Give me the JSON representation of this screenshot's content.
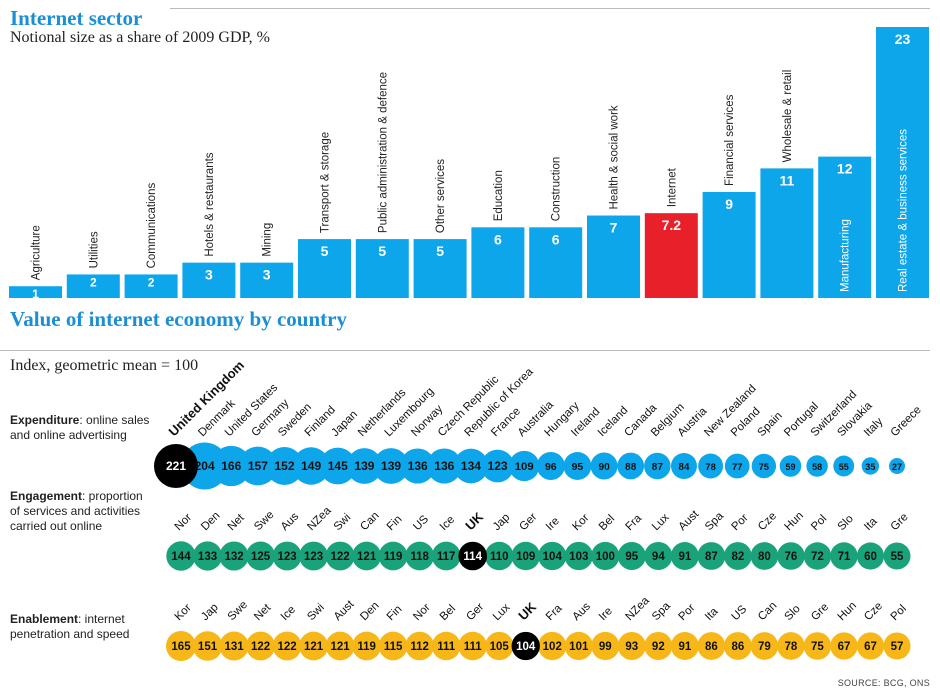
{
  "header": {
    "title": "Internet sector",
    "subtitle": "Notional size as a share of 2009 GDP, %"
  },
  "section2": {
    "title": "Value of internet economy by country",
    "subtitle": "Index, geometric mean = 100"
  },
  "source": "SOURCE: BCG, ONS",
  "colors": {
    "bar": "#0ea6ea",
    "highlight_bar": "#e8202a",
    "expenditure": "#0ea6ea",
    "engagement": "#1aa37a",
    "enablement": "#f7b718",
    "uk": "#000000"
  },
  "rows": {
    "expenditure": {
      "label_bold": "Expenditure",
      "label_rest": ": online sales and online adver­tising"
    },
    "engagement": {
      "label_bold": "Engagement",
      "label_rest": ": propor­tion of services and activities carried out online"
    },
    "enablement": {
      "label_bold": "Enablement",
      "label_rest": ": internet penetration and speed"
    }
  },
  "chart_data": [
    {
      "type": "bar",
      "title": "Internet sector",
      "subtitle": "Notional size as a share of 2009 GDP, %",
      "categories": [
        "Agriculture",
        "Utilities",
        "Communications",
        "Hotels & restaurants",
        "Mining",
        "Transport & storage",
        "Public administration & defence",
        "Other services",
        "Education",
        "Construction",
        "Health & social work",
        "Internet",
        "Financial services",
        "Wholesale & retail",
        "Manufacturing",
        "Real estate & business services"
      ],
      "values": [
        1,
        2,
        2,
        3,
        3,
        5,
        5,
        5,
        6,
        6,
        7,
        7.2,
        9,
        11,
        12,
        23
      ],
      "value_labels": [
        "1",
        "2",
        "2",
        "3",
        "3",
        "5",
        "5",
        "5",
        "6",
        "6",
        "7",
        "7.2",
        "9",
        "11",
        "12",
        "23"
      ],
      "highlight": "Internet",
      "ylim": [
        0,
        23
      ]
    },
    {
      "type": "scatter",
      "title": "Value of internet economy by country",
      "subtitle": "Index, geometric mean = 100",
      "series": [
        {
          "name": "Expenditure",
          "categories": [
            "United Kingdom",
            "Denmark",
            "United States",
            "Germany",
            "Sweden",
            "Finland",
            "Japan",
            "Netherlands",
            "Luxembourg",
            "Norway",
            "Czech Republic",
            "Republic of Korea",
            "France",
            "Australia",
            "Hungary",
            "Ireland",
            "Iceland",
            "Canada",
            "Belgium",
            "Austria",
            "New Zealand",
            "Poland",
            "Spain",
            "Portugal",
            "Switzerland",
            "Slovakia",
            "Italy",
            "Greece"
          ],
          "values": [
            221,
            204,
            166,
            157,
            152,
            149,
            145,
            139,
            139,
            136,
            136,
            134,
            123,
            109,
            96,
            95,
            90,
            88,
            87,
            84,
            78,
            77,
            75,
            59,
            58,
            55,
            35,
            27
          ],
          "highlight": "United Kingdom"
        },
        {
          "name": "Engagement",
          "categories": [
            "Nor",
            "Den",
            "Net",
            "Swe",
            "Aus",
            "NZea",
            "Swi",
            "Can",
            "Fin",
            "US",
            "Ice",
            "UK",
            "Jap",
            "Ger",
            "Ire",
            "Kor",
            "Bel",
            "Fra",
            "Lux",
            "Aust",
            "Spa",
            "Por",
            "Cze",
            "Hun",
            "Pol",
            "Slo",
            "Ita",
            "Gre"
          ],
          "values": [
            144,
            133,
            132,
            125,
            123,
            123,
            122,
            121,
            119,
            118,
            117,
            114,
            110,
            109,
            104,
            103,
            100,
            95,
            94,
            91,
            87,
            82,
            80,
            76,
            72,
            71,
            60,
            55
          ],
          "highlight": "UK"
        },
        {
          "name": "Enablement",
          "categories": [
            "Kor",
            "Jap",
            "Swe",
            "Net",
            "Ice",
            "Swi",
            "Aust",
            "Den",
            "Fin",
            "Nor",
            "Bel",
            "Ger",
            "Lux",
            "UK",
            "Fra",
            "Aus",
            "Ire",
            "NZea",
            "Spa",
            "Por",
            "Ita",
            "US",
            "Can",
            "Slo",
            "Gre",
            "Hun",
            "Cze",
            "Pol"
          ],
          "values": [
            165,
            151,
            131,
            122,
            122,
            121,
            121,
            119,
            115,
            112,
            111,
            111,
            105,
            104,
            102,
            101,
            99,
            93,
            92,
            91,
            86,
            86,
            79,
            78,
            75,
            67,
            67,
            57
          ],
          "highlight": "UK"
        }
      ]
    }
  ]
}
